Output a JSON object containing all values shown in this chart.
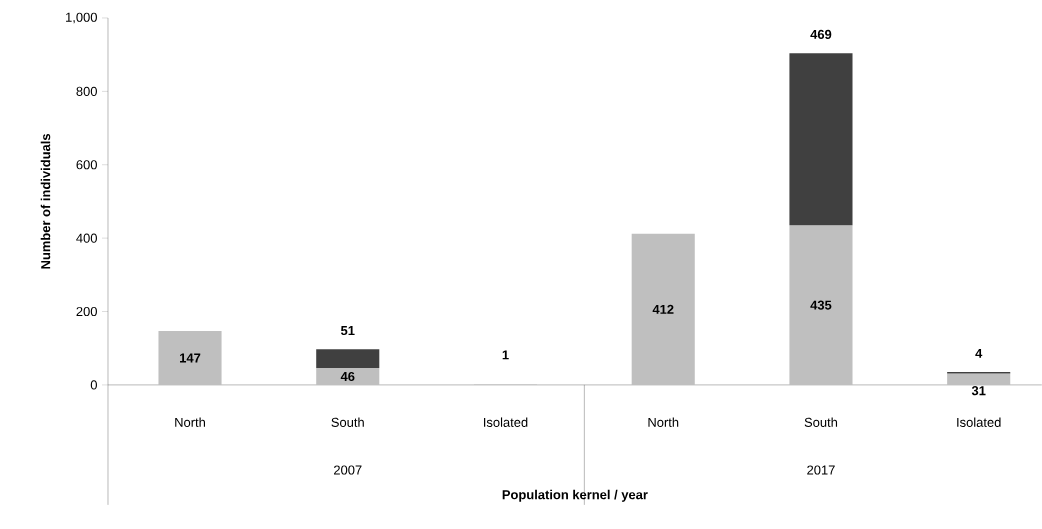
{
  "chart_data": {
    "type": "bar",
    "stacked": true,
    "xlabel": "Population kernel / year",
    "ylabel": "Number of individuals",
    "categories": [
      "North",
      "South",
      "Isolated",
      "North",
      "South",
      "Isolated"
    ],
    "series": [
      {
        "color": "#bfbfbf",
        "values": [
          147,
          46,
          1,
          412,
          435,
          31
        ]
      },
      {
        "color": "#404040",
        "values": [
          null,
          51,
          null,
          null,
          469,
          4
        ]
      }
    ],
    "ylim": [
      0,
      1000
    ],
    "yticks": [
      0,
      200,
      400,
      600,
      800,
      {
        "value": 1000,
        "label": "1,000"
      }
    ],
    "data_labels": true,
    "grid": false,
    "annotations": [
      "2007",
      "2017"
    ]
  }
}
